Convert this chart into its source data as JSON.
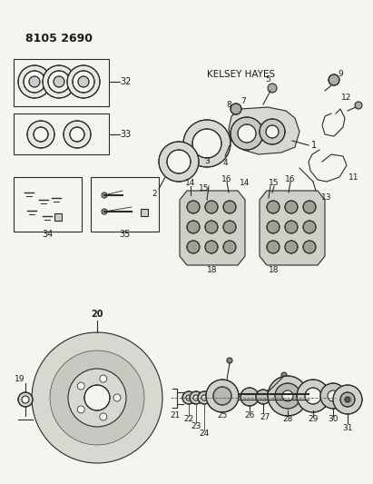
{
  "title": "8105 2690",
  "bg_color": "#f5f5f0",
  "line_color": "#2a2a2a",
  "text_color": "#1a1a1a",
  "kelsey_hayes_label": "KELSEY HAYES",
  "figsize": [
    4.11,
    5.33
  ],
  "dpi": 100
}
